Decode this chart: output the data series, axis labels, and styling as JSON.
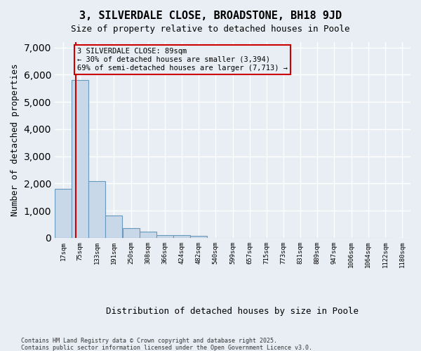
{
  "title": "3, SILVERDALE CLOSE, BROADSTONE, BH18 9JD",
  "subtitle": "Size of property relative to detached houses in Poole",
  "xlabel": "Distribution of detached houses by size in Poole",
  "ylabel": "Number of detached properties",
  "bar_color": "#c8d8e8",
  "bar_edge_color": "#6699bb",
  "bg_color": "#e8eef4",
  "grid_color": "#ffffff",
  "annotation_box_color": "#cc0000",
  "red_line_color": "#cc0000",
  "property_line_x": 89,
  "annotation_text": "3 SILVERDALE CLOSE: 89sqm\n← 30% of detached houses are smaller (3,394)\n69% of semi-detached houses are larger (7,713) →",
  "categories": [
    "17sqm",
    "75sqm",
    "133sqm",
    "191sqm",
    "250sqm",
    "308sqm",
    "366sqm",
    "424sqm",
    "482sqm",
    "540sqm",
    "599sqm",
    "657sqm",
    "715sqm",
    "773sqm",
    "831sqm",
    "889sqm",
    "947sqm",
    "1006sqm",
    "1064sqm",
    "1122sqm",
    "1180sqm"
  ],
  "bin_edges": [
    17,
    75,
    133,
    191,
    250,
    308,
    366,
    424,
    482,
    540,
    599,
    657,
    715,
    773,
    831,
    889,
    947,
    1006,
    1064,
    1122,
    1180
  ],
  "bar_heights": [
    1800,
    5800,
    2080,
    820,
    360,
    220,
    110,
    100,
    70,
    0,
    0,
    0,
    0,
    0,
    0,
    0,
    0,
    0,
    0,
    0
  ],
  "ylim": [
    0,
    7200
  ],
  "xlim_min": 17,
  "xlim_max": 1180,
  "footnote1": "Contains HM Land Registry data © Crown copyright and database right 2025.",
  "footnote2": "Contains public sector information licensed under the Open Government Licence v3.0."
}
